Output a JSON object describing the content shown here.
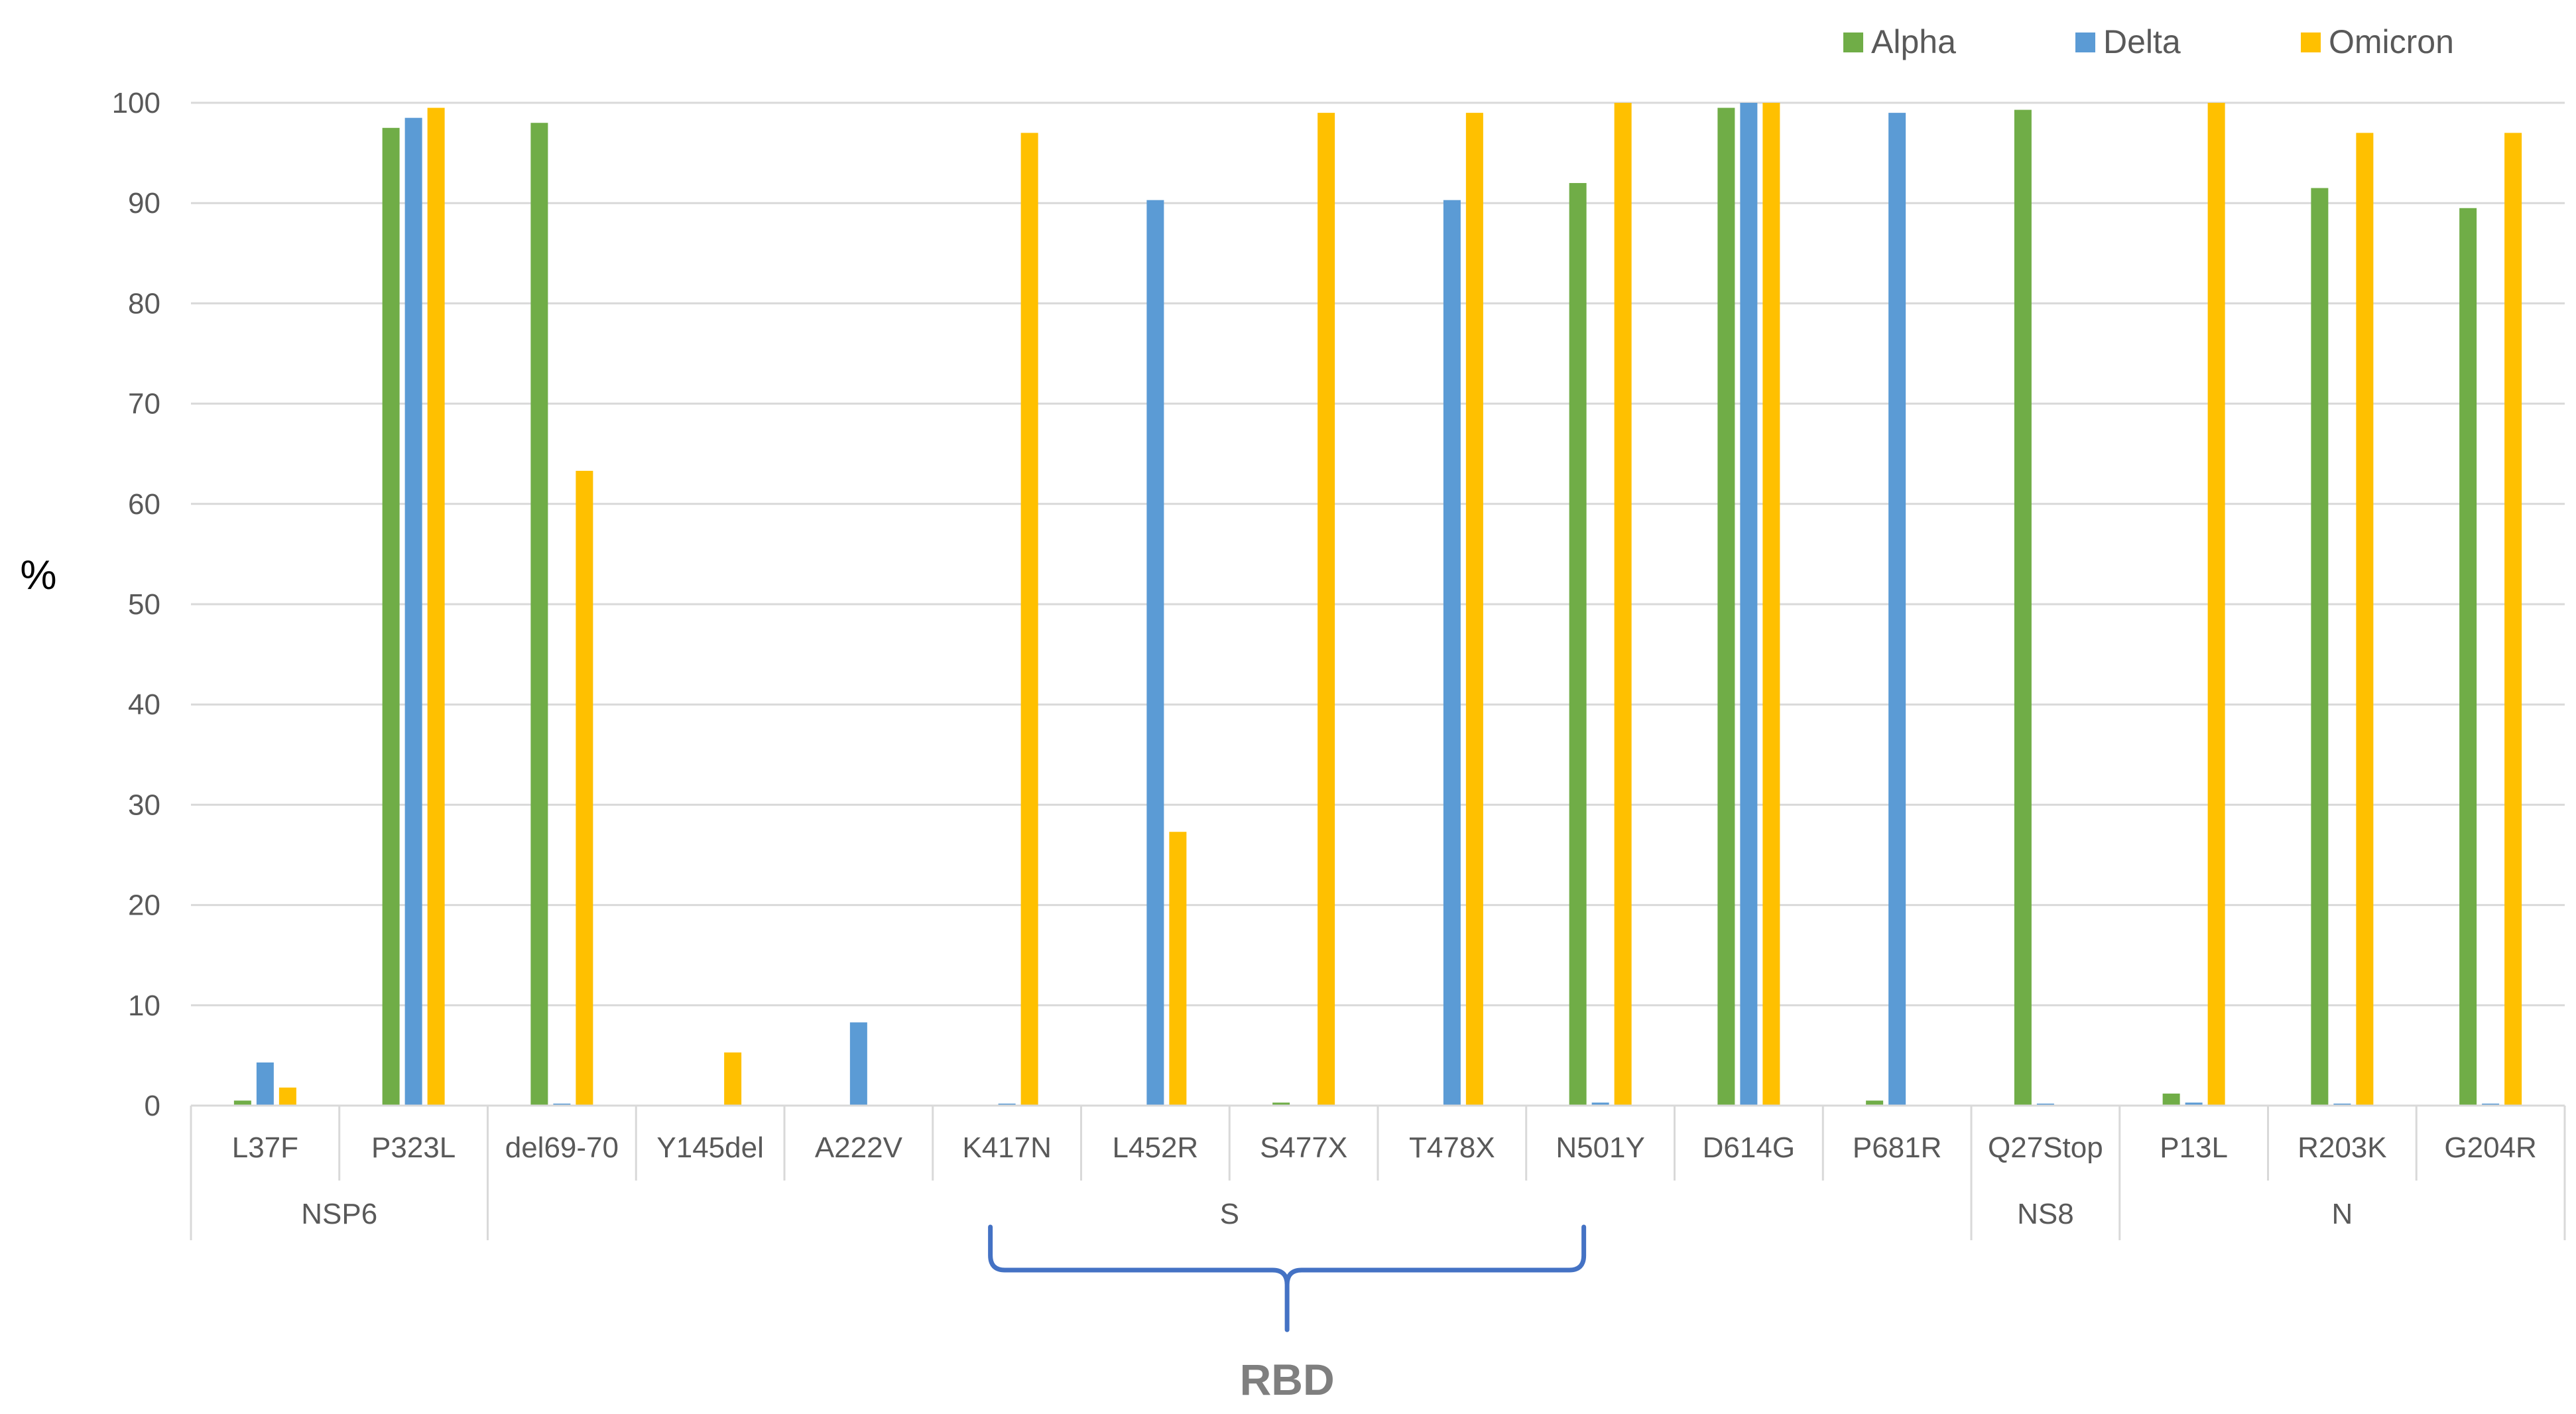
{
  "chart_data": {
    "type": "bar",
    "title": "",
    "xlabel": "",
    "ylabel": "%",
    "ylim": [
      0,
      100
    ],
    "yticks": [
      0,
      10,
      20,
      30,
      40,
      50,
      60,
      70,
      80,
      90,
      100
    ],
    "grid": true,
    "legend_position": "top-right",
    "categories": [
      "L37F",
      "P323L",
      "del69-70",
      "Y145del",
      "A222V",
      "K417N",
      "L452R",
      "S477X",
      "T478X",
      "N501Y",
      "D614G",
      "P681R",
      "Q27Stop",
      "P13L",
      "R203K",
      "G204R"
    ],
    "groups": [
      {
        "label": "NSP6",
        "categories": [
          "L37F",
          "P323L"
        ]
      },
      {
        "label": "S",
        "categories": [
          "del69-70",
          "Y145del",
          "A222V",
          "K417N",
          "L452R",
          "S477X",
          "T478X",
          "N501Y",
          "D614G",
          "P681R"
        ]
      },
      {
        "label": "NS8",
        "categories": [
          "Q27Stop"
        ]
      },
      {
        "label": "N",
        "categories": [
          "P13L",
          "R203K",
          "G204R"
        ]
      }
    ],
    "series": [
      {
        "name": "Alpha",
        "color": "#70ad47",
        "values": [
          0.5,
          97.5,
          98,
          0,
          0,
          0,
          0,
          0.3,
          0,
          92,
          99.5,
          0.5,
          99.3,
          1.2,
          91.5,
          89.5
        ]
      },
      {
        "name": "Delta",
        "color": "#5b9bd5",
        "values": [
          4.3,
          98.5,
          0.2,
          0,
          8.3,
          0.2,
          90.3,
          0,
          90.3,
          0.3,
          100,
          99,
          0.2,
          0.3,
          0.2,
          0.2
        ]
      },
      {
        "name": "Omicron",
        "color": "#ffc000",
        "values": [
          1.8,
          99.5,
          63.3,
          5.3,
          0,
          97,
          27.3,
          99,
          99,
          100,
          100,
          0,
          0,
          100,
          97,
          97
        ]
      }
    ],
    "annotations": [
      {
        "text": "RBD",
        "bracket_from": "K417N",
        "bracket_to": "N501Y",
        "color": "#4472c4"
      }
    ]
  }
}
